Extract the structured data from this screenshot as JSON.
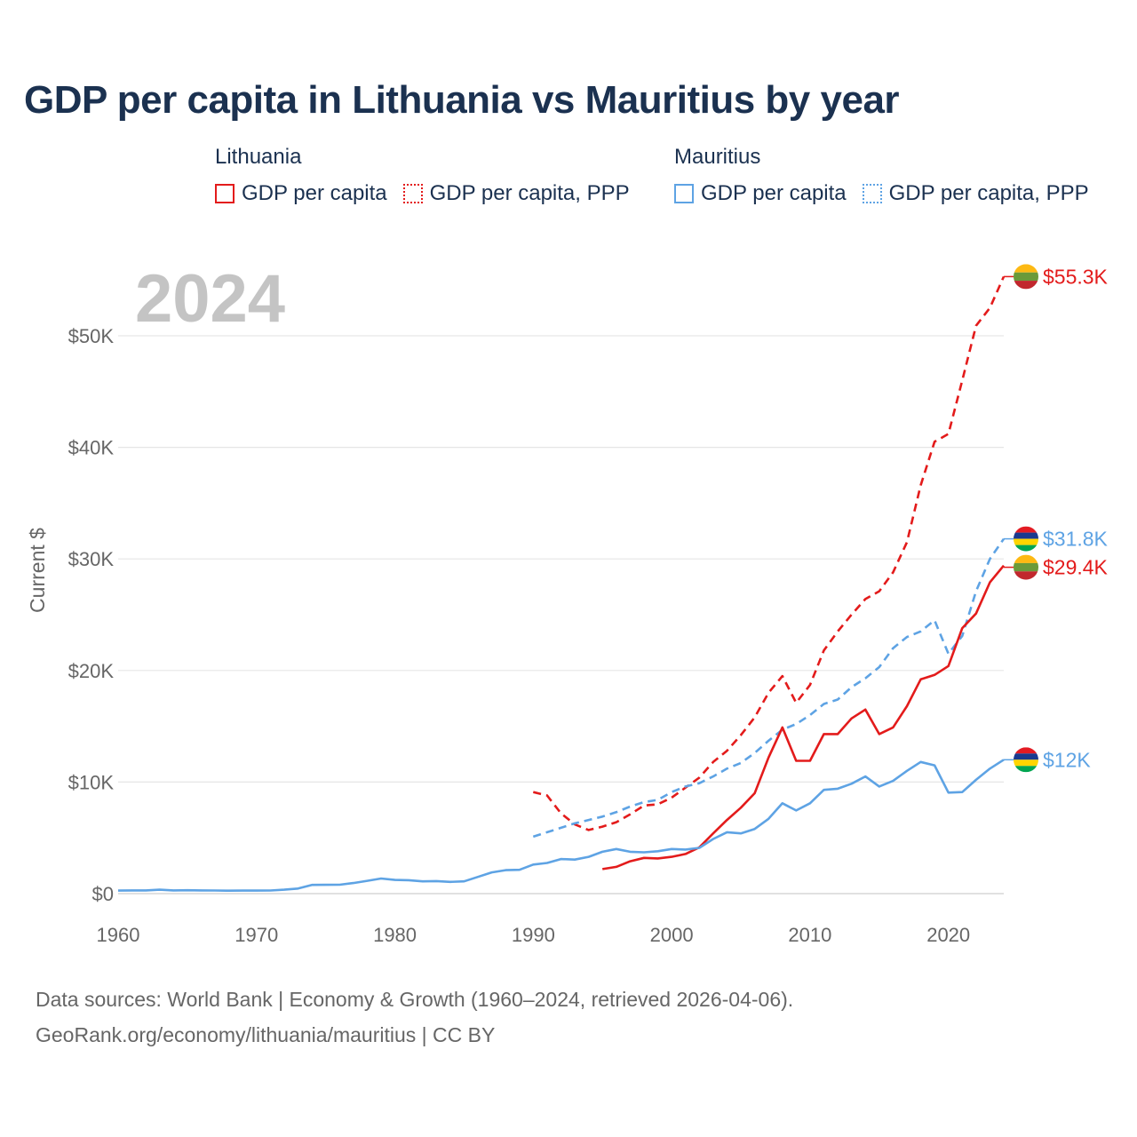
{
  "title": "GDP per capita in Lithuania vs Mauritius by year",
  "legend": {
    "groups": [
      {
        "country": "Lithuania",
        "items": [
          {
            "label": "GDP per capita",
            "color": "#e31b1b",
            "style": "solid"
          },
          {
            "label": "GDP per capita, PPP",
            "color": "#e31b1b",
            "style": "dotted"
          }
        ]
      },
      {
        "country": "Mauritius",
        "items": [
          {
            "label": "GDP per capita",
            "color": "#5ea3e4",
            "style": "solid"
          },
          {
            "label": "GDP per capita, PPP",
            "color": "#5ea3e4",
            "style": "dotted"
          }
        ]
      }
    ]
  },
  "year_label": "2024",
  "footer": {
    "line1": "Data sources: World Bank | Economy & Growth (1960–2024, retrieved 2026-04-06).",
    "line2": "GeoRank.org/economy/lithuania/mauritius | CC BY"
  },
  "chart_data": {
    "type": "line",
    "title": "GDP per capita in Lithuania vs Mauritius by year",
    "ylabel": "Current $",
    "xlabel": "",
    "xlim": [
      1960,
      2024
    ],
    "ylim": [
      0,
      55300
    ],
    "x_ticks": [
      1960,
      1970,
      1980,
      1990,
      2000,
      2010,
      2020
    ],
    "y_ticks": [
      {
        "value": 0,
        "label": "$0"
      },
      {
        "value": 10000,
        "label": "$10K"
      },
      {
        "value": 20000,
        "label": "$20K"
      },
      {
        "value": 30000,
        "label": "$30K"
      },
      {
        "value": 40000,
        "label": "$40K"
      },
      {
        "value": 50000,
        "label": "$50K"
      }
    ],
    "grid": true,
    "series": [
      {
        "name": "Lithuania GDP per capita, PPP",
        "country": "Lithuania",
        "color": "#e31b1b",
        "dashed": true,
        "end_label": "$55.3K",
        "points": [
          [
            1990,
            9100
          ],
          [
            1991,
            8800
          ],
          [
            1992,
            7200
          ],
          [
            1993,
            6200
          ],
          [
            1994,
            5700
          ],
          [
            1995,
            6000
          ],
          [
            1996,
            6400
          ],
          [
            1997,
            7100
          ],
          [
            1998,
            7900
          ],
          [
            1999,
            8000
          ],
          [
            2000,
            8600
          ],
          [
            2001,
            9500
          ],
          [
            2002,
            10400
          ],
          [
            2003,
            11800
          ],
          [
            2004,
            12800
          ],
          [
            2005,
            14200
          ],
          [
            2006,
            15800
          ],
          [
            2007,
            18000
          ],
          [
            2008,
            19500
          ],
          [
            2009,
            17100
          ],
          [
            2010,
            18700
          ],
          [
            2011,
            21800
          ],
          [
            2012,
            23500
          ],
          [
            2013,
            25000
          ],
          [
            2014,
            26400
          ],
          [
            2015,
            27100
          ],
          [
            2016,
            28800
          ],
          [
            2017,
            31500
          ],
          [
            2018,
            36600
          ],
          [
            2019,
            40500
          ],
          [
            2020,
            41200
          ],
          [
            2021,
            46000
          ],
          [
            2022,
            50900
          ],
          [
            2023,
            52500
          ],
          [
            2024,
            55300
          ]
        ]
      },
      {
        "name": "Mauritius GDP per capita, PPP",
        "country": "Mauritius",
        "color": "#5ea3e4",
        "dashed": true,
        "end_label": "$31.8K",
        "points": [
          [
            1990,
            5100
          ],
          [
            1991,
            5500
          ],
          [
            1992,
            5900
          ],
          [
            1993,
            6300
          ],
          [
            1994,
            6600
          ],
          [
            1995,
            6900
          ],
          [
            1996,
            7300
          ],
          [
            1997,
            7800
          ],
          [
            1998,
            8200
          ],
          [
            1999,
            8400
          ],
          [
            2000,
            9100
          ],
          [
            2001,
            9600
          ],
          [
            2002,
            9900
          ],
          [
            2003,
            10500
          ],
          [
            2004,
            11200
          ],
          [
            2005,
            11700
          ],
          [
            2006,
            12600
          ],
          [
            2007,
            13700
          ],
          [
            2008,
            14700
          ],
          [
            2009,
            15200
          ],
          [
            2010,
            16000
          ],
          [
            2011,
            17000
          ],
          [
            2012,
            17400
          ],
          [
            2013,
            18500
          ],
          [
            2014,
            19300
          ],
          [
            2015,
            20300
          ],
          [
            2016,
            22000
          ],
          [
            2017,
            23000
          ],
          [
            2018,
            23500
          ],
          [
            2019,
            24500
          ],
          [
            2020,
            21500
          ],
          [
            2021,
            23100
          ],
          [
            2022,
            27100
          ],
          [
            2023,
            30000
          ],
          [
            2024,
            31800
          ]
        ]
      },
      {
        "name": "Lithuania GDP per capita",
        "country": "Lithuania",
        "color": "#e31b1b",
        "dashed": false,
        "end_label": "$29.4K",
        "points": [
          [
            1995,
            2200
          ],
          [
            1996,
            2400
          ],
          [
            1997,
            2900
          ],
          [
            1998,
            3200
          ],
          [
            1999,
            3150
          ],
          [
            2000,
            3300
          ],
          [
            2001,
            3550
          ],
          [
            2002,
            4150
          ],
          [
            2003,
            5400
          ],
          [
            2004,
            6600
          ],
          [
            2005,
            7700
          ],
          [
            2006,
            9000
          ],
          [
            2007,
            12200
          ],
          [
            2008,
            14900
          ],
          [
            2009,
            11900
          ],
          [
            2010,
            11900
          ],
          [
            2011,
            14300
          ],
          [
            2012,
            14300
          ],
          [
            2013,
            15700
          ],
          [
            2014,
            16500
          ],
          [
            2015,
            14300
          ],
          [
            2016,
            14900
          ],
          [
            2017,
            16800
          ],
          [
            2018,
            19200
          ],
          [
            2019,
            19600
          ],
          [
            2020,
            20400
          ],
          [
            2021,
            23800
          ],
          [
            2022,
            25100
          ],
          [
            2023,
            27900
          ],
          [
            2024,
            29400
          ]
        ]
      },
      {
        "name": "Mauritius GDP per capita",
        "country": "Mauritius",
        "color": "#5ea3e4",
        "dashed": false,
        "end_label": "$12K",
        "points": [
          [
            1960,
            270
          ],
          [
            1961,
            290
          ],
          [
            1962,
            290
          ],
          [
            1963,
            350
          ],
          [
            1964,
            290
          ],
          [
            1965,
            300
          ],
          [
            1966,
            290
          ],
          [
            1967,
            280
          ],
          [
            1968,
            260
          ],
          [
            1969,
            270
          ],
          [
            1970,
            270
          ],
          [
            1971,
            280
          ],
          [
            1972,
            350
          ],
          [
            1973,
            450
          ],
          [
            1974,
            780
          ],
          [
            1975,
            790
          ],
          [
            1976,
            800
          ],
          [
            1977,
            950
          ],
          [
            1978,
            1150
          ],
          [
            1979,
            1350
          ],
          [
            1980,
            1230
          ],
          [
            1981,
            1200
          ],
          [
            1982,
            1100
          ],
          [
            1983,
            1120
          ],
          [
            1984,
            1050
          ],
          [
            1985,
            1100
          ],
          [
            1986,
            1500
          ],
          [
            1987,
            1900
          ],
          [
            1988,
            2100
          ],
          [
            1989,
            2130
          ],
          [
            1990,
            2600
          ],
          [
            1991,
            2750
          ],
          [
            1992,
            3100
          ],
          [
            1993,
            3050
          ],
          [
            1994,
            3300
          ],
          [
            1995,
            3750
          ],
          [
            1996,
            4000
          ],
          [
            1997,
            3750
          ],
          [
            1998,
            3700
          ],
          [
            1999,
            3800
          ],
          [
            2000,
            4000
          ],
          [
            2001,
            3950
          ],
          [
            2002,
            4100
          ],
          [
            2003,
            4900
          ],
          [
            2004,
            5500
          ],
          [
            2005,
            5400
          ],
          [
            2006,
            5800
          ],
          [
            2007,
            6700
          ],
          [
            2008,
            8100
          ],
          [
            2009,
            7450
          ],
          [
            2010,
            8100
          ],
          [
            2011,
            9300
          ],
          [
            2012,
            9400
          ],
          [
            2013,
            9850
          ],
          [
            2014,
            10500
          ],
          [
            2015,
            9600
          ],
          [
            2016,
            10100
          ],
          [
            2017,
            11000
          ],
          [
            2018,
            11800
          ],
          [
            2019,
            11500
          ],
          [
            2020,
            9050
          ],
          [
            2021,
            9100
          ],
          [
            2022,
            10200
          ],
          [
            2023,
            11200
          ],
          [
            2024,
            12000
          ]
        ]
      }
    ]
  }
}
